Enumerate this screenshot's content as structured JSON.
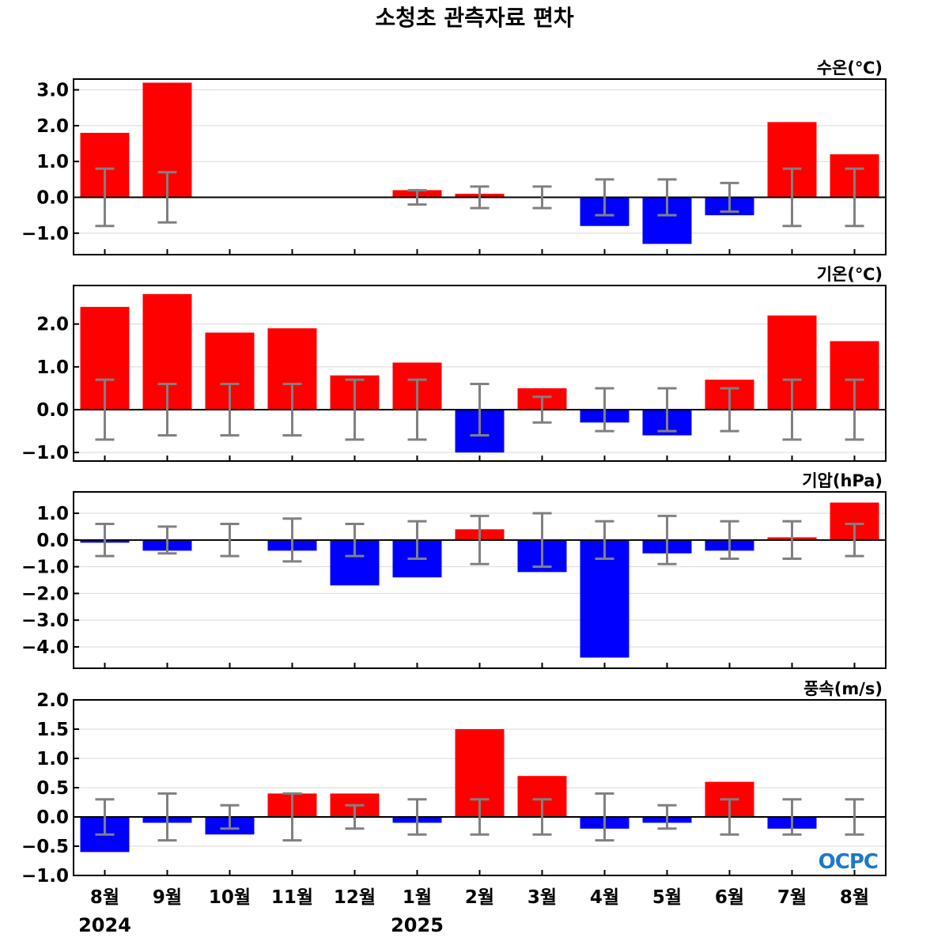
{
  "title": "소청초 관측자료 편차",
  "colors": {
    "positive": "#ff0000",
    "negative": "#0000ff",
    "error_bar": "#808080",
    "grid": "#d9d9d9",
    "logo": "#1e78c8"
  },
  "logo": {
    "text": "OCPC"
  },
  "x_axis": {
    "months": [
      "8월",
      "9월",
      "10월",
      "11월",
      "12월",
      "1월",
      "2월",
      "3월",
      "4월",
      "5월",
      "6월",
      "7월",
      "8월"
    ],
    "years": [
      {
        "label": "2024",
        "month_index": 0
      },
      {
        "label": "2025",
        "month_index": 5
      }
    ]
  },
  "chart_data": [
    {
      "type": "bar",
      "label": "수온(℃)",
      "ylim": [
        -1.6,
        3.3
      ],
      "yticks": [
        -1.0,
        0.0,
        1.0,
        2.0,
        3.0
      ],
      "tick_decimals": 1,
      "grid": true,
      "values": [
        1.8,
        3.2,
        null,
        null,
        null,
        0.2,
        0.1,
        0.0,
        -0.8,
        -1.3,
        -0.5,
        2.1,
        1.2
      ],
      "error": [
        0.8,
        0.7,
        null,
        null,
        null,
        0.2,
        0.3,
        0.3,
        0.5,
        0.5,
        0.4,
        0.8,
        0.8
      ]
    },
    {
      "type": "bar",
      "label": "기온(℃)",
      "ylim": [
        -1.2,
        2.9
      ],
      "yticks": [
        -1.0,
        0.0,
        1.0,
        2.0
      ],
      "tick_decimals": 1,
      "grid": true,
      "values": [
        2.4,
        2.7,
        1.8,
        1.9,
        0.8,
        1.1,
        -1.0,
        0.5,
        -0.3,
        -0.6,
        0.7,
        2.2,
        1.6
      ],
      "error": [
        0.7,
        0.6,
        0.6,
        0.6,
        0.7,
        0.7,
        0.6,
        0.3,
        0.5,
        0.5,
        0.5,
        0.7,
        0.7
      ]
    },
    {
      "type": "bar",
      "label": "기압(hPa)",
      "ylim": [
        -4.8,
        1.8
      ],
      "yticks": [
        -4.0,
        -3.0,
        -2.0,
        -1.0,
        0.0,
        1.0
      ],
      "tick_decimals": 1,
      "grid": true,
      "values": [
        -0.1,
        -0.4,
        0.0,
        -0.4,
        -1.7,
        -1.4,
        0.4,
        -1.2,
        -4.4,
        -0.5,
        -0.4,
        0.1,
        1.4
      ],
      "error": [
        0.6,
        0.5,
        0.6,
        0.8,
        0.6,
        0.7,
        0.9,
        1.0,
        0.7,
        0.9,
        0.7,
        0.7,
        0.6
      ]
    },
    {
      "type": "bar",
      "label": "풍속(m/s)",
      "ylim": [
        -1.0,
        2.0
      ],
      "yticks": [
        -1.0,
        -0.5,
        0.0,
        0.5,
        1.0,
        1.5,
        2.0
      ],
      "tick_decimals": 1,
      "grid": true,
      "values": [
        -0.6,
        -0.1,
        -0.3,
        0.4,
        0.4,
        -0.1,
        1.5,
        0.7,
        -0.2,
        -0.1,
        0.6,
        -0.2,
        0.0
      ],
      "error": [
        0.3,
        0.4,
        0.2,
        0.4,
        0.2,
        0.3,
        0.3,
        0.3,
        0.4,
        0.2,
        0.3,
        0.3,
        0.3
      ]
    }
  ]
}
